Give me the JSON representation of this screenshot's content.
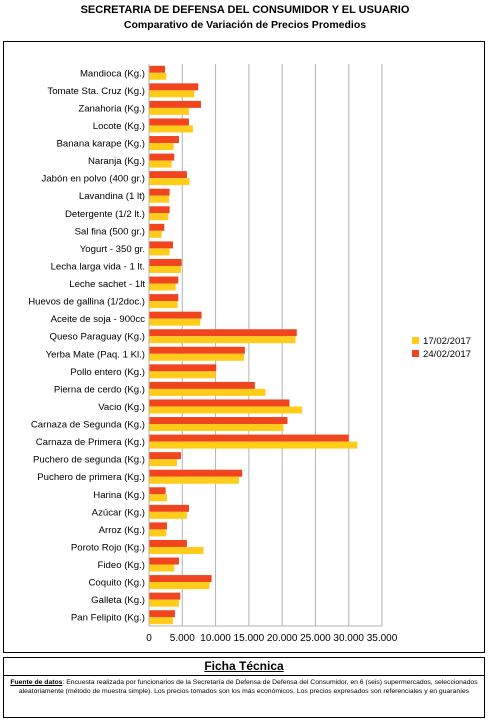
{
  "header": {
    "title": "SECRETARIA DE DEFENSA DEL CONSUMIDOR Y EL USUARIO",
    "subtitle": "Comparativo de Variación de Precios Promedios"
  },
  "chart_data": {
    "type": "bar",
    "orientation": "horizontal",
    "categories": [
      "Mandioca (Kg.)",
      "Tomate Sta. Cruz (Kg.)",
      "Zanahoria (Kg.)",
      "Locote (Kg.)",
      "Banana karape (Kg.)",
      "Naranja (Kg.)",
      "Jabón en polvo (400 gr.)",
      "Lavandina (1 lt)",
      "Detergente (1/2 lt.)",
      "Sal fina (500 gr.)",
      "Yogurt - 350 gr.",
      "Lecha larga vida - 1 lt.",
      "Leche sachet - 1lt",
      "Huevos de gallina (1/2doc.)",
      "Aceite de soja - 900cc",
      "Queso Paraguay (Kg.)",
      "Yerba Mate (Paq. 1 Kl.)",
      "Pollo entero  (Kg.)",
      "Pierna de cerdo (Kg.)",
      "Vacio (Kg.)",
      "Carnaza de Segunda (Kg.)",
      "Carnaza de Primera (Kg.)",
      "Puchero de segunda (Kg.)",
      "Puchero de primera  (Kg.)",
      "Harina (Kg.)",
      "Azúcar (Kg.)",
      "Arroz (Kg.)",
      "Poroto Rojo (Kg.)",
      "Fideo (Kg.)",
      "Coquito (Kg.)",
      "Galleta (Kg.)",
      "Pan Felipito (Kg.)"
    ],
    "series": [
      {
        "name": "17/02/2017",
        "color": "#FFCC1A",
        "values": [
          2600,
          6800,
          6000,
          6600,
          3700,
          3400,
          6100,
          3000,
          2900,
          1900,
          3100,
          4800,
          4000,
          4300,
          7700,
          22000,
          14300,
          10000,
          17500,
          23000,
          20200,
          31300,
          4200,
          13500,
          2700,
          5700,
          2600,
          8200,
          3800,
          9100,
          4500,
          3600
        ]
      },
      {
        "name": "24/02/2017",
        "color": "#F0451F",
        "values": [
          2400,
          7400,
          7800,
          6000,
          4500,
          3800,
          5700,
          3100,
          3100,
          2300,
          3600,
          4900,
          4400,
          4400,
          7900,
          22200,
          14400,
          10100,
          15900,
          21100,
          20800,
          30000,
          4800,
          14000,
          2500,
          6000,
          2700,
          5700,
          4500,
          9400,
          4700,
          3900
        ]
      }
    ],
    "xlim": [
      0,
      35000
    ],
    "xticks": [
      "0",
      "5.000",
      "10.000",
      "15.000",
      "20.000",
      "25.000",
      "30.000",
      "35.000"
    ],
    "grid": true,
    "legend_position": "right"
  },
  "ficha": {
    "title": "Ficha Técnica",
    "source_label": "Fuente de datos",
    "source_text": ": Encuesta realizada por funcionarios de la  Secretaría de Defensa  de Defensa del Consumidor, en 6 (seis) supermercados,  seleccionados aleatoriamente (método de muestra simple).   Los precios tomados son los más económicos. Los precios expresados son referenciales y  en guaraníes"
  }
}
